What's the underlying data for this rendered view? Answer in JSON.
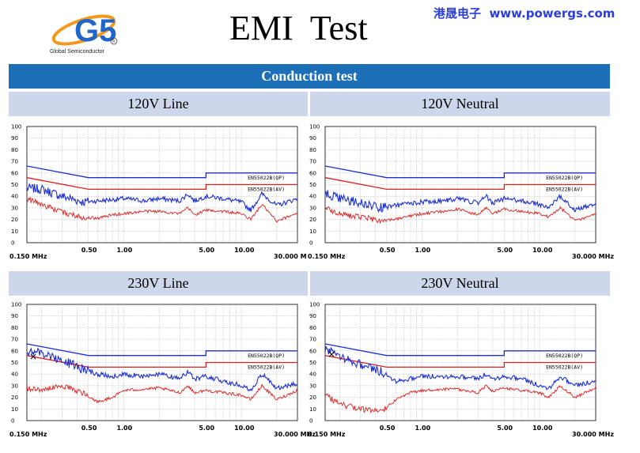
{
  "header": {
    "logo_mark": "G5",
    "logo_sub": "Global Semiconductor",
    "title": "EMI  Test",
    "brand_text": "港晟电子  www.powergs.com"
  },
  "banner": "Conduction test",
  "colors": {
    "qp": "#1c2fd6",
    "av": "#e01e1e",
    "grid": "#bfbfbf",
    "header_row": "#cdd6ea",
    "banner": "#1d6fb8"
  },
  "charts": [
    {
      "panel_label": "120V Line",
      "x_start_label": "0.150 MHz",
      "x_end_label": "30.000 M",
      "marker": false
    },
    {
      "panel_label": "120V Neutral",
      "x_start_label": "0.150 MHz",
      "x_end_label": "30.000 MHz",
      "marker": false
    },
    {
      "panel_label": "230V Line",
      "x_start_label": "0.150 MHz",
      "x_end_label": "30.000 MHz",
      "marker": true
    },
    {
      "panel_label": "230V Neutral",
      "x_start_label": "0.150 MHz",
      "x_end_label": "30.000 MHz",
      "marker": true
    }
  ],
  "chart_data": [
    {
      "type": "line",
      "title": "120V Line",
      "xscale": "log",
      "xlim": [
        0.15,
        30
      ],
      "ylim": [
        0,
        100
      ],
      "yticks": [
        0,
        10,
        20,
        30,
        40,
        50,
        60,
        70,
        80,
        90,
        100
      ],
      "xtick_labels": [
        "0.50",
        "1.00",
        "5.00",
        "10.00"
      ],
      "xtick_values": [
        0.5,
        1,
        5,
        10
      ],
      "legend": [
        "EN55022B(QP)",
        "EN55022B(AV)"
      ],
      "limits": [
        {
          "name": "EN55022B(QP)",
          "x": [
            0.15,
            0.5,
            0.5,
            5,
            5,
            30
          ],
          "y": [
            66,
            56,
            56,
            56,
            60,
            60
          ]
        },
        {
          "name": "EN55022B(AV)",
          "x": [
            0.15,
            0.5,
            0.5,
            5,
            5,
            30
          ],
          "y": [
            56,
            46,
            46,
            46,
            50,
            50
          ]
        }
      ],
      "series": [
        {
          "name": "QP measured",
          "x": [
            0.15,
            0.2,
            0.3,
            0.45,
            0.6,
            0.8,
            1,
            1.5,
            2,
            3,
            3.5,
            4,
            5,
            7,
            10,
            12,
            15,
            20,
            30
          ],
          "y": [
            47,
            46,
            40,
            35,
            36,
            37,
            38,
            36,
            38,
            36,
            42,
            36,
            40,
            38,
            35,
            28,
            42,
            32,
            38
          ]
        },
        {
          "name": "AV measured",
          "x": [
            0.15,
            0.2,
            0.3,
            0.45,
            0.6,
            0.8,
            1,
            1.5,
            2,
            3,
            3.5,
            4,
            5,
            7,
            10,
            12,
            15,
            20,
            30
          ],
          "y": [
            38,
            33,
            26,
            22,
            21,
            24,
            25,
            27,
            27,
            25,
            30,
            24,
            28,
            27,
            25,
            20,
            33,
            18,
            26
          ]
        }
      ]
    },
    {
      "type": "line",
      "title": "120V Neutral",
      "xscale": "log",
      "xlim": [
        0.15,
        30
      ],
      "ylim": [
        0,
        100
      ],
      "yticks": [
        0,
        10,
        20,
        30,
        40,
        50,
        60,
        70,
        80,
        90,
        100
      ],
      "xtick_labels": [
        "0.50",
        "1.00",
        "5.00",
        "10.00"
      ],
      "xtick_values": [
        0.5,
        1,
        5,
        10
      ],
      "legend": [
        "EN55022B(QP)",
        "EN55022B(AV)"
      ],
      "limits": [
        {
          "name": "EN55022B(QP)",
          "x": [
            0.15,
            0.5,
            0.5,
            5,
            5,
            30
          ],
          "y": [
            66,
            56,
            56,
            56,
            60,
            60
          ]
        },
        {
          "name": "EN55022B(AV)",
          "x": [
            0.15,
            0.5,
            0.5,
            5,
            5,
            30
          ],
          "y": [
            56,
            46,
            46,
            46,
            50,
            50
          ]
        }
      ],
      "series": [
        {
          "name": "QP measured",
          "x": [
            0.15,
            0.2,
            0.3,
            0.45,
            0.6,
            0.8,
            1,
            1.5,
            2,
            3,
            3.5,
            4,
            5,
            7,
            10,
            12,
            15,
            20,
            30
          ],
          "y": [
            42,
            38,
            34,
            30,
            32,
            34,
            35,
            36,
            38,
            34,
            40,
            34,
            38,
            36,
            33,
            30,
            40,
            28,
            34
          ]
        },
        {
          "name": "AV measured",
          "x": [
            0.15,
            0.2,
            0.3,
            0.45,
            0.6,
            0.8,
            1,
            1.5,
            2,
            3,
            3.5,
            4,
            5,
            7,
            10,
            12,
            15,
            20,
            30
          ],
          "y": [
            30,
            25,
            22,
            19,
            20,
            23,
            25,
            27,
            29,
            24,
            30,
            25,
            29,
            27,
            25,
            22,
            30,
            19,
            24
          ]
        }
      ]
    },
    {
      "type": "line",
      "title": "230V Line",
      "xscale": "log",
      "xlim": [
        0.15,
        30
      ],
      "ylim": [
        0,
        100
      ],
      "yticks": [
        0,
        10,
        20,
        30,
        40,
        50,
        60,
        70,
        80,
        90,
        100
      ],
      "xtick_labels": [
        "0.50",
        "1.00",
        "5.00",
        "10.00"
      ],
      "xtick_values": [
        0.5,
        1,
        5,
        10
      ],
      "legend": [
        "EN55022B(QP)",
        "EN55022B(AV)"
      ],
      "limits": [
        {
          "name": "EN55022B(QP)",
          "x": [
            0.15,
            0.5,
            0.5,
            5,
            5,
            30
          ],
          "y": [
            66,
            56,
            56,
            56,
            60,
            60
          ]
        },
        {
          "name": "EN55022B(AV)",
          "x": [
            0.15,
            0.5,
            0.5,
            5,
            5,
            30
          ],
          "y": [
            56,
            46,
            46,
            46,
            50,
            50
          ]
        }
      ],
      "series": [
        {
          "name": "QP measured",
          "x": [
            0.15,
            0.2,
            0.3,
            0.45,
            0.6,
            0.8,
            1,
            1.5,
            2,
            3,
            3.5,
            4,
            5,
            7,
            10,
            12,
            15,
            20,
            30
          ],
          "y": [
            60,
            58,
            52,
            44,
            40,
            38,
            40,
            38,
            40,
            36,
            42,
            36,
            38,
            34,
            30,
            26,
            40,
            28,
            32
          ]
        },
        {
          "name": "AV measured",
          "x": [
            0.15,
            0.2,
            0.3,
            0.45,
            0.6,
            0.8,
            1,
            1.5,
            2,
            3,
            3.5,
            4,
            5,
            7,
            10,
            12,
            15,
            20,
            30
          ],
          "y": [
            28,
            26,
            30,
            24,
            16,
            20,
            26,
            27,
            28,
            24,
            30,
            24,
            26,
            24,
            22,
            18,
            30,
            18,
            26
          ]
        }
      ]
    },
    {
      "type": "line",
      "title": "230V Neutral",
      "xscale": "log",
      "xlim": [
        0.15,
        30
      ],
      "ylim": [
        0,
        100
      ],
      "yticks": [
        0,
        10,
        20,
        30,
        40,
        50,
        60,
        70,
        80,
        90,
        100
      ],
      "xtick_labels": [
        "0.50",
        "1.00",
        "5.00",
        "10.00"
      ],
      "xtick_values": [
        0.5,
        1,
        5,
        10
      ],
      "legend": [
        "EN55022B(QP)",
        "EN55022B(AV)"
      ],
      "limits": [
        {
          "name": "EN55022B(QP)",
          "x": [
            0.15,
            0.5,
            0.5,
            5,
            5,
            30
          ],
          "y": [
            66,
            56,
            56,
            56,
            60,
            60
          ]
        },
        {
          "name": "EN55022B(AV)",
          "x": [
            0.15,
            0.5,
            0.5,
            5,
            5,
            30
          ],
          "y": [
            56,
            46,
            46,
            46,
            50,
            50
          ]
        }
      ],
      "series": [
        {
          "name": "QP measured",
          "x": [
            0.15,
            0.2,
            0.3,
            0.45,
            0.6,
            0.8,
            1,
            1.5,
            2,
            3,
            3.5,
            4,
            5,
            7,
            10,
            12,
            15,
            20,
            30
          ],
          "y": [
            62,
            56,
            48,
            42,
            34,
            36,
            38,
            38,
            38,
            36,
            40,
            36,
            38,
            36,
            30,
            28,
            38,
            30,
            34
          ]
        },
        {
          "name": "AV measured",
          "x": [
            0.15,
            0.2,
            0.3,
            0.45,
            0.6,
            0.8,
            1,
            1.5,
            2,
            3,
            3.5,
            4,
            5,
            7,
            10,
            12,
            15,
            20,
            30
          ],
          "y": [
            22,
            14,
            10,
            8,
            18,
            24,
            26,
            27,
            27,
            24,
            30,
            25,
            28,
            26,
            24,
            20,
            30,
            20,
            28
          ]
        }
      ]
    }
  ]
}
